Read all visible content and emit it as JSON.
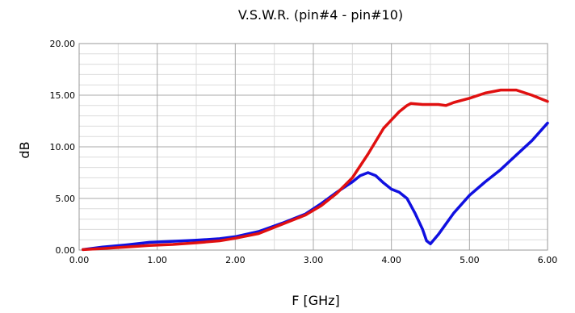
{
  "chart_data": {
    "type": "line",
    "title": "V.S.W.R. (pin#4 - pin#10)",
    "xlabel": "F [GHz]",
    "ylabel": "dB",
    "xlim": [
      0,
      6
    ],
    "ylim": [
      0,
      20
    ],
    "x_ticks": [
      "0.00",
      "1.00",
      "2.00",
      "3.00",
      "4.00",
      "5.00",
      "6.00"
    ],
    "y_ticks": [
      "0.00",
      "5.00",
      "10.00",
      "15.00",
      "20.00"
    ],
    "x_minor_step": 0.5,
    "y_minor_step": 1,
    "grid": true,
    "series": [
      {
        "color": "#1010e0",
        "x": [
          0.05,
          0.3,
          0.6,
          0.9,
          1.2,
          1.5,
          1.8,
          2.0,
          2.3,
          2.6,
          2.9,
          3.1,
          3.3,
          3.5,
          3.6,
          3.7,
          3.8,
          3.9,
          4.0,
          4.1,
          4.2,
          4.3,
          4.4,
          4.45,
          4.5,
          4.6,
          4.8,
          5.0,
          5.2,
          5.4,
          5.6,
          5.8,
          6.0
        ],
        "y": [
          0.05,
          0.3,
          0.5,
          0.75,
          0.85,
          0.95,
          1.1,
          1.3,
          1.8,
          2.6,
          3.5,
          4.5,
          5.6,
          6.6,
          7.2,
          7.5,
          7.2,
          6.5,
          5.9,
          5.6,
          5.0,
          3.6,
          2.0,
          0.9,
          0.6,
          1.5,
          3.6,
          5.3,
          6.6,
          7.8,
          9.2,
          10.6,
          12.3
        ]
      },
      {
        "color": "#e01010",
        "x": [
          0.05,
          0.3,
          0.6,
          0.9,
          1.2,
          1.5,
          1.8,
          2.0,
          2.3,
          2.6,
          2.9,
          3.1,
          3.3,
          3.5,
          3.7,
          3.9,
          4.0,
          4.1,
          4.2,
          4.25,
          4.4,
          4.6,
          4.7,
          4.8,
          5.0,
          5.2,
          5.4,
          5.6,
          5.8,
          6.0
        ],
        "y": [
          0.05,
          0.15,
          0.3,
          0.45,
          0.55,
          0.7,
          0.9,
          1.15,
          1.6,
          2.5,
          3.4,
          4.3,
          5.5,
          7.0,
          9.3,
          11.8,
          12.6,
          13.4,
          14.0,
          14.2,
          14.1,
          14.1,
          14.0,
          14.3,
          14.7,
          15.2,
          15.5,
          15.5,
          15.0,
          14.4
        ]
      }
    ]
  }
}
